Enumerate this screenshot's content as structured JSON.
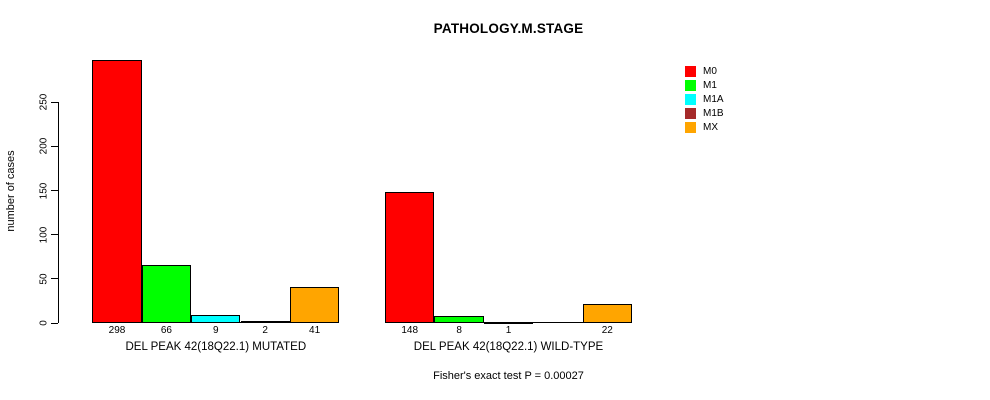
{
  "title": "PATHOLOGY.M.STAGE",
  "y_axis": {
    "label": "number of cases",
    "ticks": [
      0,
      50,
      100,
      150,
      200,
      250
    ]
  },
  "footer": "Fisher's exact test P = 0.00027",
  "legend": {
    "items": [
      {
        "label": "M0",
        "color": "#ff0000"
      },
      {
        "label": "M1",
        "color": "#00ff00"
      },
      {
        "label": "M1A",
        "color": "#00ffff"
      },
      {
        "label": "M1B",
        "color": "#a52a2a"
      },
      {
        "label": "MX",
        "color": "#ffa500"
      }
    ]
  },
  "chart_data": {
    "type": "bar",
    "title": "PATHOLOGY.M.STAGE",
    "xlabel": "",
    "ylabel": "number of cases",
    "ylim": [
      0,
      298
    ],
    "yticks": [
      0,
      50,
      100,
      150,
      200,
      250
    ],
    "grid": false,
    "legend_position": "top-right",
    "series_names": [
      "M0",
      "M1",
      "M1A",
      "M1B",
      "MX"
    ],
    "colors": [
      "#ff0000",
      "#00ff00",
      "#00ffff",
      "#a52a2a",
      "#ffa500"
    ],
    "groups": [
      {
        "label": "DEL PEAK 42(18Q22.1) MUTATED",
        "values": [
          298,
          66,
          9,
          2,
          41
        ],
        "value_labels": [
          "298",
          "66",
          "9",
          "2",
          "41"
        ]
      },
      {
        "label": "DEL PEAK 42(18Q22.1) WILD-TYPE",
        "values": [
          148,
          8,
          1,
          0,
          22
        ],
        "value_labels": [
          "148",
          "8",
          "1",
          "",
          "22"
        ]
      }
    ],
    "annotation": "Fisher's exact test P = 0.00027"
  }
}
